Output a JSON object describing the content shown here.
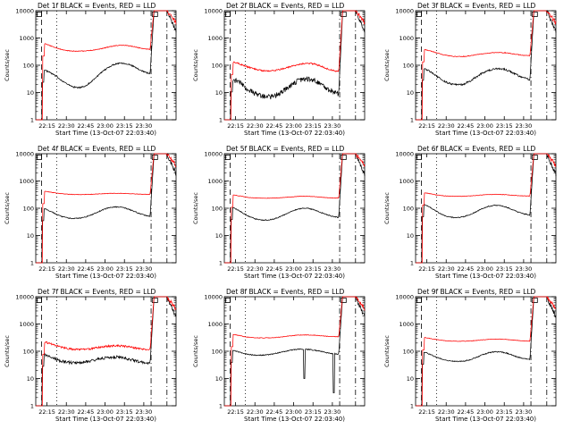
{
  "figure": {
    "xlabel": "Start Time (13-Oct-07 22:03:40)",
    "ylabel": "Counts/sec",
    "xticks": [
      "22:15",
      "22:30",
      "22:45",
      "23:00",
      "23:15",
      "23:30"
    ]
  },
  "chart_data": [
    {
      "type": "line",
      "title": "Det 1f BLACK = Events, RED = LLD",
      "yscale": "log",
      "ylim": [
        1,
        10000
      ],
      "yticks": [
        "1",
        "10",
        "100",
        "1000",
        "10000"
      ],
      "xticks": [
        "22:15",
        "22:30",
        "22:45",
        "23:00",
        "23:15",
        "23:30"
      ],
      "xlabel": "Start Time (13-Oct-07 22:03:40)",
      "ylabel": "Counts/sec",
      "series": [
        {
          "color": "#000000",
          "baseline": [
            68,
            55,
            40,
            28,
            20,
            16,
            15,
            17,
            24,
            38,
            58,
            85,
            110,
            122,
            115,
            95,
            72,
            58,
            48
          ],
          "noise": 0.06,
          "dips": []
        },
        {
          "color": "#ff0000",
          "baseline": [
            620,
            520,
            430,
            370,
            340,
            330,
            330,
            335,
            350,
            380,
            420,
            470,
            520,
            540,
            530,
            490,
            440,
            400,
            380
          ],
          "noise": 0.03,
          "dips": []
        }
      ]
    },
    {
      "type": "line",
      "title": "Det 2f BLACK = Events, RED = LLD",
      "yscale": "log",
      "ylim": [
        1,
        10000
      ],
      "yticks": [
        "1",
        "10",
        "100",
        "1000",
        "10000"
      ],
      "xticks": [
        "22:15",
        "22:30",
        "22:45",
        "23:00",
        "23:15",
        "23:30"
      ],
      "xlabel": "Start Time (13-Oct-07 22:03:40)",
      "ylabel": "Counts/sec",
      "series": [
        {
          "color": "#000000",
          "baseline": [
            30,
            25,
            17,
            12,
            9,
            7.5,
            7,
            7.5,
            9,
            13,
            19,
            26,
            32,
            33,
            28,
            20,
            14,
            11,
            9
          ],
          "noise": 0.22,
          "dips": []
        },
        {
          "color": "#ff0000",
          "baseline": [
            130,
            115,
            95,
            80,
            70,
            64,
            62,
            64,
            70,
            80,
            92,
            105,
            115,
            118,
            110,
            92,
            75,
            64,
            60
          ],
          "noise": 0.06,
          "dips": []
        }
      ]
    },
    {
      "type": "line",
      "title": "Det 3f BLACK = Events, RED = LLD",
      "yscale": "log",
      "ylim": [
        1,
        10000
      ],
      "yticks": [
        "1",
        "10",
        "100",
        "1000",
        "10000"
      ],
      "xticks": [
        "22:15",
        "22:30",
        "22:45",
        "23:00",
        "23:15",
        "23:30"
      ],
      "xlabel": "Start Time (13-Oct-07 22:03:40)",
      "ylabel": "Counts/sec",
      "series": [
        {
          "color": "#000000",
          "baseline": [
            80,
            60,
            42,
            30,
            23,
            20,
            19,
            21,
            27,
            38,
            52,
            65,
            74,
            76,
            68,
            54,
            42,
            34,
            30
          ],
          "noise": 0.08,
          "dips": []
        },
        {
          "color": "#ff0000",
          "baseline": [
            380,
            340,
            290,
            250,
            225,
            210,
            208,
            212,
            225,
            245,
            265,
            280,
            290,
            292,
            285,
            265,
            245,
            230,
            225
          ],
          "noise": 0.03,
          "dips": []
        }
      ]
    },
    {
      "type": "line",
      "title": "Det 4f BLACK = Events, RED = LLD",
      "yscale": "log",
      "ylim": [
        1,
        10000
      ],
      "yticks": [
        "1",
        "10",
        "100",
        "1000",
        "10000"
      ],
      "xticks": [
        "22:15",
        "22:30",
        "22:45",
        "23:00",
        "23:15",
        "23:30"
      ],
      "xlabel": "Start Time (13-Oct-07 22:03:40)",
      "ylabel": "Counts/sec",
      "series": [
        {
          "color": "#000000",
          "baseline": [
            100,
            80,
            62,
            50,
            44,
            42,
            43,
            47,
            56,
            70,
            88,
            104,
            112,
            110,
            98,
            82,
            66,
            56,
            50
          ],
          "noise": 0.04,
          "dips": []
        },
        {
          "color": "#ff0000",
          "baseline": [
            420,
            390,
            360,
            340,
            328,
            320,
            318,
            320,
            326,
            334,
            342,
            350,
            354,
            352,
            346,
            338,
            330,
            325,
            322
          ],
          "noise": 0.02,
          "dips": []
        }
      ]
    },
    {
      "type": "line",
      "title": "Det 5f BLACK = Events, RED = LLD",
      "yscale": "log",
      "ylim": [
        1,
        10000
      ],
      "yticks": [
        "1",
        "10",
        "100",
        "1000",
        "10000"
      ],
      "xticks": [
        "22:15",
        "22:30",
        "22:45",
        "23:00",
        "23:15",
        "23:30"
      ],
      "xlabel": "Start Time (13-Oct-07 22:03:40)",
      "ylabel": "Counts/sec",
      "series": [
        {
          "color": "#000000",
          "baseline": [
            110,
            85,
            62,
            48,
            40,
            37,
            37,
            40,
            48,
            60,
            76,
            92,
            100,
            98,
            86,
            70,
            58,
            50,
            46
          ],
          "noise": 0.04,
          "dips": []
        },
        {
          "color": "#ff0000",
          "baseline": [
            310,
            285,
            260,
            245,
            238,
            234,
            234,
            236,
            242,
            252,
            262,
            272,
            276,
            274,
            266,
            254,
            244,
            238,
            235
          ],
          "noise": 0.02,
          "dips": []
        }
      ]
    },
    {
      "type": "line",
      "title": "Det 6f BLACK = Events, RED = LLD",
      "yscale": "log",
      "ylim": [
        1,
        10000
      ],
      "yticks": [
        "1",
        "10",
        "100",
        "1000",
        "10000"
      ],
      "xticks": [
        "22:15",
        "22:30",
        "22:45",
        "23:00",
        "23:15",
        "23:30"
      ],
      "xlabel": "Start Time (13-Oct-07 22:03:40)",
      "ylabel": "Counts/sec",
      "series": [
        {
          "color": "#000000",
          "baseline": [
            140,
            110,
            80,
            60,
            50,
            46,
            46,
            50,
            60,
            76,
            98,
            118,
            128,
            125,
            110,
            90,
            72,
            62,
            56
          ],
          "noise": 0.04,
          "dips": []
        },
        {
          "color": "#ff0000",
          "baseline": [
            370,
            340,
            310,
            290,
            280,
            275,
            274,
            277,
            284,
            296,
            308,
            318,
            322,
            320,
            312,
            300,
            290,
            284,
            280
          ],
          "noise": 0.02,
          "dips": []
        }
      ]
    },
    {
      "type": "line",
      "title": "Det 7f BLACK = Events, RED = LLD",
      "yscale": "log",
      "ylim": [
        1,
        10000
      ],
      "yticks": [
        "1",
        "10",
        "100",
        "1000",
        "10000"
      ],
      "xticks": [
        "22:15",
        "22:30",
        "22:45",
        "23:00",
        "23:15",
        "23:30"
      ],
      "xlabel": "Start Time (13-Oct-07 22:03:40)",
      "ylabel": "Counts/sec",
      "series": [
        {
          "color": "#000000",
          "baseline": [
            80,
            65,
            52,
            44,
            40,
            38,
            38,
            40,
            44,
            50,
            56,
            60,
            62,
            60,
            55,
            48,
            42,
            38,
            36
          ],
          "noise": 0.12,
          "dips": []
        },
        {
          "color": "#ff0000",
          "baseline": [
            220,
            190,
            160,
            140,
            125,
            118,
            116,
            118,
            124,
            134,
            146,
            156,
            160,
            158,
            150,
            138,
            126,
            118,
            114
          ],
          "noise": 0.08,
          "dips": []
        }
      ]
    },
    {
      "type": "line",
      "title": "Det 8f BLACK = Events, RED = LLD",
      "yscale": "log",
      "ylim": [
        1,
        10000
      ],
      "yticks": [
        "1",
        "10",
        "100",
        "1000",
        "10000"
      ],
      "xticks": [
        "22:15",
        "22:30",
        "22:45",
        "23:00",
        "23:15",
        "23:30"
      ],
      "xlabel": "Start Time (13-Oct-07 22:03:40)",
      "ylabel": "Counts/sec",
      "series": [
        {
          "color": "#000000",
          "baseline": [
            110,
            95,
            82,
            75,
            72,
            72,
            74,
            80,
            90,
            100,
            110,
            118,
            120,
            116,
            108,
            98,
            88,
            82,
            78
          ],
          "noise": 0.04,
          "dips": [
            [
              0.57,
              10
            ],
            [
              0.78,
              3
            ]
          ]
        },
        {
          "color": "#ff0000",
          "baseline": [
            420,
            380,
            340,
            320,
            310,
            308,
            310,
            318,
            332,
            352,
            372,
            390,
            398,
            395,
            385,
            370,
            355,
            345,
            340
          ],
          "noise": 0.025,
          "dips": []
        }
      ]
    },
    {
      "type": "line",
      "title": "Det 9f BLACK = Events, RED = LLD",
      "yscale": "log",
      "ylim": [
        1,
        10000
      ],
      "yticks": [
        "1",
        "10",
        "100",
        "1000",
        "10000"
      ],
      "xticks": [
        "22:15",
        "22:30",
        "22:45",
        "23:00",
        "23:15",
        "23:30"
      ],
      "xlabel": "Start Time (13-Oct-07 22:03:40)",
      "ylabel": "Counts/sec",
      "series": [
        {
          "color": "#000000",
          "baseline": [
            95,
            78,
            62,
            52,
            46,
            43,
            42,
            44,
            50,
            60,
            74,
            88,
            96,
            95,
            86,
            72,
            60,
            54,
            50
          ],
          "noise": 0.04,
          "dips": []
        },
        {
          "color": "#ff0000",
          "baseline": [
            320,
            295,
            270,
            252,
            240,
            234,
            232,
            234,
            240,
            250,
            262,
            274,
            280,
            278,
            270,
            258,
            248,
            240,
            236
          ],
          "noise": 0.02,
          "dips": []
        }
      ]
    }
  ]
}
